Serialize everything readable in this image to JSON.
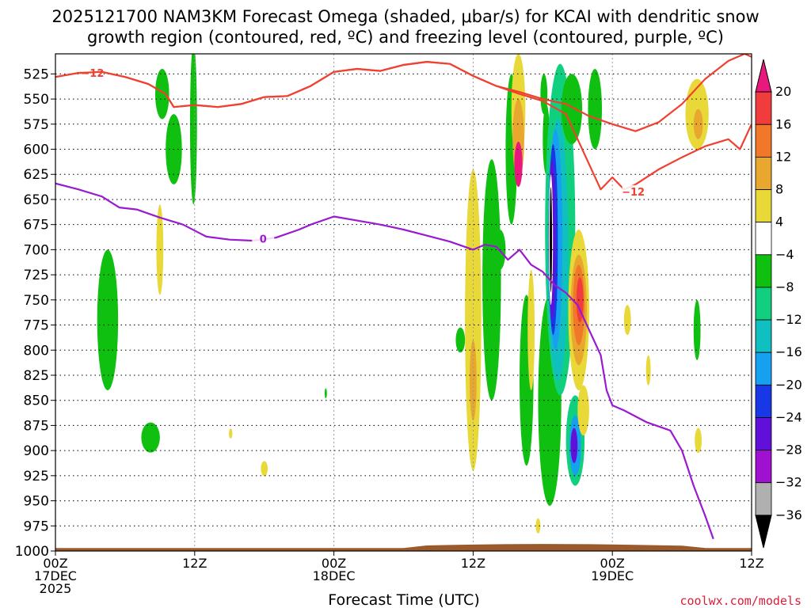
{
  "title_line1": "2025121700 NAM3KM Forecast Omega (shaded, μbar/s) for KCAI with dendritic snow",
  "title_line2": "growth region (contoured, red, ºC) and freezing level (contoured, purple, ºC)",
  "credit": "coolwx.com/models",
  "colors": {
    "ground": "#9b5a2c",
    "dgz": "#f04030",
    "freezing": "#9a1ad0",
    "credit": "#d81f3a"
  },
  "chart_data": {
    "type": "heatmap",
    "xlabel": "Forecast Time (UTC)",
    "ylabel": "",
    "x_unit": "forecast hour",
    "xlim": [
      0,
      60
    ],
    "ylim": [
      1000,
      505
    ],
    "y_ticks": [
      525,
      550,
      575,
      600,
      625,
      650,
      675,
      700,
      725,
      750,
      775,
      800,
      825,
      850,
      875,
      900,
      925,
      950,
      975,
      1000
    ],
    "x_ticks": [
      {
        "hour": 0,
        "lines": [
          "00Z",
          "17DEC",
          "2025"
        ]
      },
      {
        "hour": 12,
        "lines": [
          "12Z"
        ]
      },
      {
        "hour": 24,
        "lines": [
          "00Z",
          "18DEC"
        ]
      },
      {
        "hour": 36,
        "lines": [
          "12Z"
        ]
      },
      {
        "hour": 48,
        "lines": [
          "00Z",
          "19DEC"
        ]
      },
      {
        "hour": 60,
        "lines": [
          "12Z"
        ]
      }
    ],
    "colorbar": {
      "labels": [
        20,
        16,
        12,
        8,
        4,
        -4,
        -8,
        -12,
        -16,
        -20,
        -24,
        -28,
        -32,
        -36
      ],
      "colors": [
        "#e8187e",
        "#f03c3c",
        "#f07828",
        "#e8a830",
        "#e8d838",
        "#ffffff",
        "#10c010",
        "#10d080",
        "#10c0c0",
        "#18a0f0",
        "#1838e8",
        "#6010d8",
        "#a010d0",
        "#b0b0b0",
        "#000000"
      ]
    },
    "omega_cells": [
      {
        "t": 9.2,
        "p": 545,
        "dt": 0.6,
        "dp": 50,
        "color": "#10c010"
      },
      {
        "t": 10.2,
        "p": 600,
        "dt": 0.7,
        "dp": 70,
        "color": "#10c010"
      },
      {
        "t": 11.9,
        "p": 575,
        "dt": 0.3,
        "dp": 160,
        "color": "#10c010"
      },
      {
        "t": 4.5,
        "p": 770,
        "dt": 0.9,
        "dp": 140,
        "color": "#10c010"
      },
      {
        "t": 8.2,
        "p": 887,
        "dt": 0.8,
        "dp": 30,
        "color": "#10c010"
      },
      {
        "t": 9.0,
        "p": 700,
        "dt": 0.3,
        "dp": 90,
        "color": "#e8d838"
      },
      {
        "t": 15.1,
        "p": 883,
        "dt": 0.15,
        "dp": 10,
        "color": "#e8d838"
      },
      {
        "t": 18.0,
        "p": 918,
        "dt": 0.3,
        "dp": 15,
        "color": "#e8d838"
      },
      {
        "t": 23.3,
        "p": 843,
        "dt": 0.1,
        "dp": 10,
        "color": "#10c010"
      },
      {
        "t": 34.9,
        "p": 790,
        "dt": 0.4,
        "dp": 25,
        "color": "#10c010"
      },
      {
        "t": 35.7,
        "p": 760,
        "dt": 0.2,
        "dp": 30,
        "color": "#10c010"
      },
      {
        "t": 36.0,
        "p": 770,
        "dt": 0.7,
        "dp": 300,
        "color": "#e8d838"
      },
      {
        "t": 36.0,
        "p": 830,
        "dt": 0.3,
        "dp": 80,
        "color": "#e8a830"
      },
      {
        "t": 37.6,
        "p": 730,
        "dt": 0.8,
        "dp": 240,
        "color": "#10c010"
      },
      {
        "t": 39.3,
        "p": 600,
        "dt": 0.5,
        "dp": 150,
        "color": "#10c010"
      },
      {
        "t": 38.3,
        "p": 700,
        "dt": 0.5,
        "dp": 40,
        "color": "#10c010"
      },
      {
        "t": 39.9,
        "p": 560,
        "dt": 0.6,
        "dp": 110,
        "color": "#e8d838"
      },
      {
        "t": 39.9,
        "p": 590,
        "dt": 0.5,
        "dp": 80,
        "color": "#e8a830"
      },
      {
        "t": 39.9,
        "p": 615,
        "dt": 0.35,
        "dp": 45,
        "color": "#e8187e"
      },
      {
        "t": 40.6,
        "p": 830,
        "dt": 0.6,
        "dp": 170,
        "color": "#10c010"
      },
      {
        "t": 41.0,
        "p": 780,
        "dt": 0.3,
        "dp": 120,
        "color": "#e8d838"
      },
      {
        "t": 41.6,
        "p": 975,
        "dt": 0.2,
        "dp": 15,
        "color": "#e8d838"
      },
      {
        "t": 42.6,
        "p": 850,
        "dt": 1.0,
        "dp": 210,
        "color": "#10c010"
      },
      {
        "t": 42.3,
        "p": 590,
        "dt": 0.3,
        "dp": 70,
        "color": "#10c010"
      },
      {
        "t": 42.1,
        "p": 545,
        "dt": 0.3,
        "dp": 40,
        "color": "#10c010"
      },
      {
        "t": 43.5,
        "p": 680,
        "dt": 1.3,
        "dp": 330,
        "color": "#10d080"
      },
      {
        "t": 43.3,
        "p": 700,
        "dt": 0.9,
        "dp": 260,
        "color": "#10c0c0"
      },
      {
        "t": 43.1,
        "p": 690,
        "dt": 0.6,
        "dp": 220,
        "color": "#18a0f0"
      },
      {
        "t": 42.9,
        "p": 690,
        "dt": 0.4,
        "dp": 190,
        "color": "#1838e8"
      },
      {
        "t": 42.8,
        "p": 690,
        "dt": 0.3,
        "dp": 160,
        "color": "#6010d8"
      },
      {
        "t": 42.7,
        "p": 690,
        "dt": 0.18,
        "dp": 130,
        "color": "#ffffff"
      },
      {
        "t": 42.7,
        "p": 690,
        "dt": 0.1,
        "dp": 105,
        "color": "#000000"
      },
      {
        "t": 44.5,
        "p": 560,
        "dt": 0.9,
        "dp": 70,
        "color": "#10c010"
      },
      {
        "t": 44.8,
        "p": 890,
        "dt": 0.8,
        "dp": 90,
        "color": "#10d080"
      },
      {
        "t": 44.8,
        "p": 895,
        "dt": 0.5,
        "dp": 60,
        "color": "#18a0f0"
      },
      {
        "t": 44.7,
        "p": 895,
        "dt": 0.3,
        "dp": 35,
        "color": "#6010d8"
      },
      {
        "t": 45.1,
        "p": 760,
        "dt": 0.9,
        "dp": 160,
        "color": "#e8d838"
      },
      {
        "t": 45.1,
        "p": 760,
        "dt": 0.7,
        "dp": 110,
        "color": "#e8a830"
      },
      {
        "t": 45.1,
        "p": 755,
        "dt": 0.5,
        "dp": 80,
        "color": "#f07828"
      },
      {
        "t": 45.2,
        "p": 750,
        "dt": 0.3,
        "dp": 45,
        "color": "#f03c3c"
      },
      {
        "t": 45.5,
        "p": 860,
        "dt": 0.5,
        "dp": 50,
        "color": "#e8d838"
      },
      {
        "t": 46.5,
        "p": 560,
        "dt": 0.6,
        "dp": 80,
        "color": "#10c010"
      },
      {
        "t": 49.3,
        "p": 770,
        "dt": 0.3,
        "dp": 30,
        "color": "#e8d838"
      },
      {
        "t": 51.1,
        "p": 820,
        "dt": 0.2,
        "dp": 30,
        "color": "#e8d838"
      },
      {
        "t": 55.3,
        "p": 780,
        "dt": 0.3,
        "dp": 60,
        "color": "#10c010"
      },
      {
        "t": 55.4,
        "p": 890,
        "dt": 0.3,
        "dp": 25,
        "color": "#e8d838"
      },
      {
        "t": 55.3,
        "p": 565,
        "dt": 1.0,
        "dp": 70,
        "color": "#e8d838"
      },
      {
        "t": 55.4,
        "p": 575,
        "dt": 0.4,
        "dp": 30,
        "color": "#e8a830"
      }
    ],
    "dgz_upper": {
      "name": "-12",
      "label": "−12",
      "label_at": [
        3.2,
        524
      ],
      "points": [
        [
          0,
          528
        ],
        [
          2,
          524
        ],
        [
          4,
          523
        ],
        [
          6,
          528
        ],
        [
          8,
          535
        ],
        [
          9.5,
          545
        ],
        [
          10.2,
          558
        ],
        [
          12,
          556
        ],
        [
          14,
          558
        ],
        [
          16,
          555
        ],
        [
          18,
          548
        ],
        [
          20,
          547
        ],
        [
          22,
          537
        ],
        [
          24,
          523
        ],
        [
          26,
          520
        ],
        [
          28,
          522
        ],
        [
          30,
          516
        ],
        [
          32,
          513
        ],
        [
          34,
          515
        ],
        [
          36,
          527
        ],
        [
          38,
          537
        ],
        [
          40,
          543
        ],
        [
          42,
          550
        ],
        [
          44,
          555
        ],
        [
          46,
          567
        ],
        [
          48,
          575
        ],
        [
          50,
          582
        ],
        [
          52,
          573
        ],
        [
          54,
          555
        ],
        [
          56,
          530
        ],
        [
          58,
          512
        ],
        [
          59.4,
          505
        ],
        [
          60,
          508
        ]
      ]
    },
    "dgz_lower": {
      "name": "-12",
      "label": "−12",
      "label_at": [
        49.8,
        642
      ],
      "points": [
        [
          0,
          528
        ],
        [
          2,
          524
        ],
        [
          4,
          523
        ],
        [
          6,
          528
        ],
        [
          8,
          535
        ],
        [
          9.5,
          545
        ],
        [
          10.2,
          558
        ],
        [
          12,
          556
        ],
        [
          14,
          558
        ],
        [
          16,
          555
        ],
        [
          18,
          548
        ],
        [
          20,
          547
        ],
        [
          22,
          537
        ],
        [
          24,
          523
        ],
        [
          26,
          520
        ],
        [
          28,
          522
        ],
        [
          30,
          516
        ],
        [
          32,
          513
        ],
        [
          34,
          515
        ],
        [
          36,
          527
        ],
        [
          38,
          537
        ],
        [
          40,
          545
        ],
        [
          42,
          552
        ],
        [
          44,
          565
        ],
        [
          45,
          590
        ],
        [
          46,
          615
        ],
        [
          47,
          640
        ],
        [
          48,
          628
        ],
        [
          49,
          640
        ],
        [
          50,
          635
        ],
        [
          52,
          620
        ],
        [
          54,
          608
        ],
        [
          56,
          597
        ],
        [
          58,
          590
        ],
        [
          59,
          600
        ],
        [
          60,
          575
        ]
      ]
    },
    "freezing_level": {
      "name": "0",
      "label": "0",
      "label_at": [
        17.9,
        689
      ],
      "points": [
        [
          0,
          634
        ],
        [
          2,
          640
        ],
        [
          4,
          647
        ],
        [
          5.5,
          658
        ],
        [
          7,
          660
        ],
        [
          9,
          668
        ],
        [
          11,
          675
        ],
        [
          13,
          687
        ],
        [
          15,
          690
        ],
        [
          17,
          691
        ],
        [
          19,
          688
        ],
        [
          21,
          680
        ],
        [
          22,
          675
        ],
        [
          24,
          667
        ],
        [
          26,
          671
        ],
        [
          28,
          675
        ],
        [
          30,
          680
        ],
        [
          32,
          686
        ],
        [
          34,
          692
        ],
        [
          36,
          700
        ],
        [
          37,
          695
        ],
        [
          38,
          697
        ],
        [
          39,
          710
        ],
        [
          40,
          700
        ],
        [
          41,
          715
        ],
        [
          42,
          722
        ],
        [
          43,
          735
        ],
        [
          44,
          743
        ],
        [
          45,
          755
        ],
        [
          46,
          780
        ],
        [
          47,
          805
        ],
        [
          47.5,
          840
        ],
        [
          48,
          855
        ],
        [
          49,
          860
        ],
        [
          51,
          872
        ],
        [
          53,
          880
        ],
        [
          54,
          900
        ],
        [
          55,
          935
        ],
        [
          56,
          965
        ],
        [
          56.7,
          988
        ]
      ]
    }
  }
}
